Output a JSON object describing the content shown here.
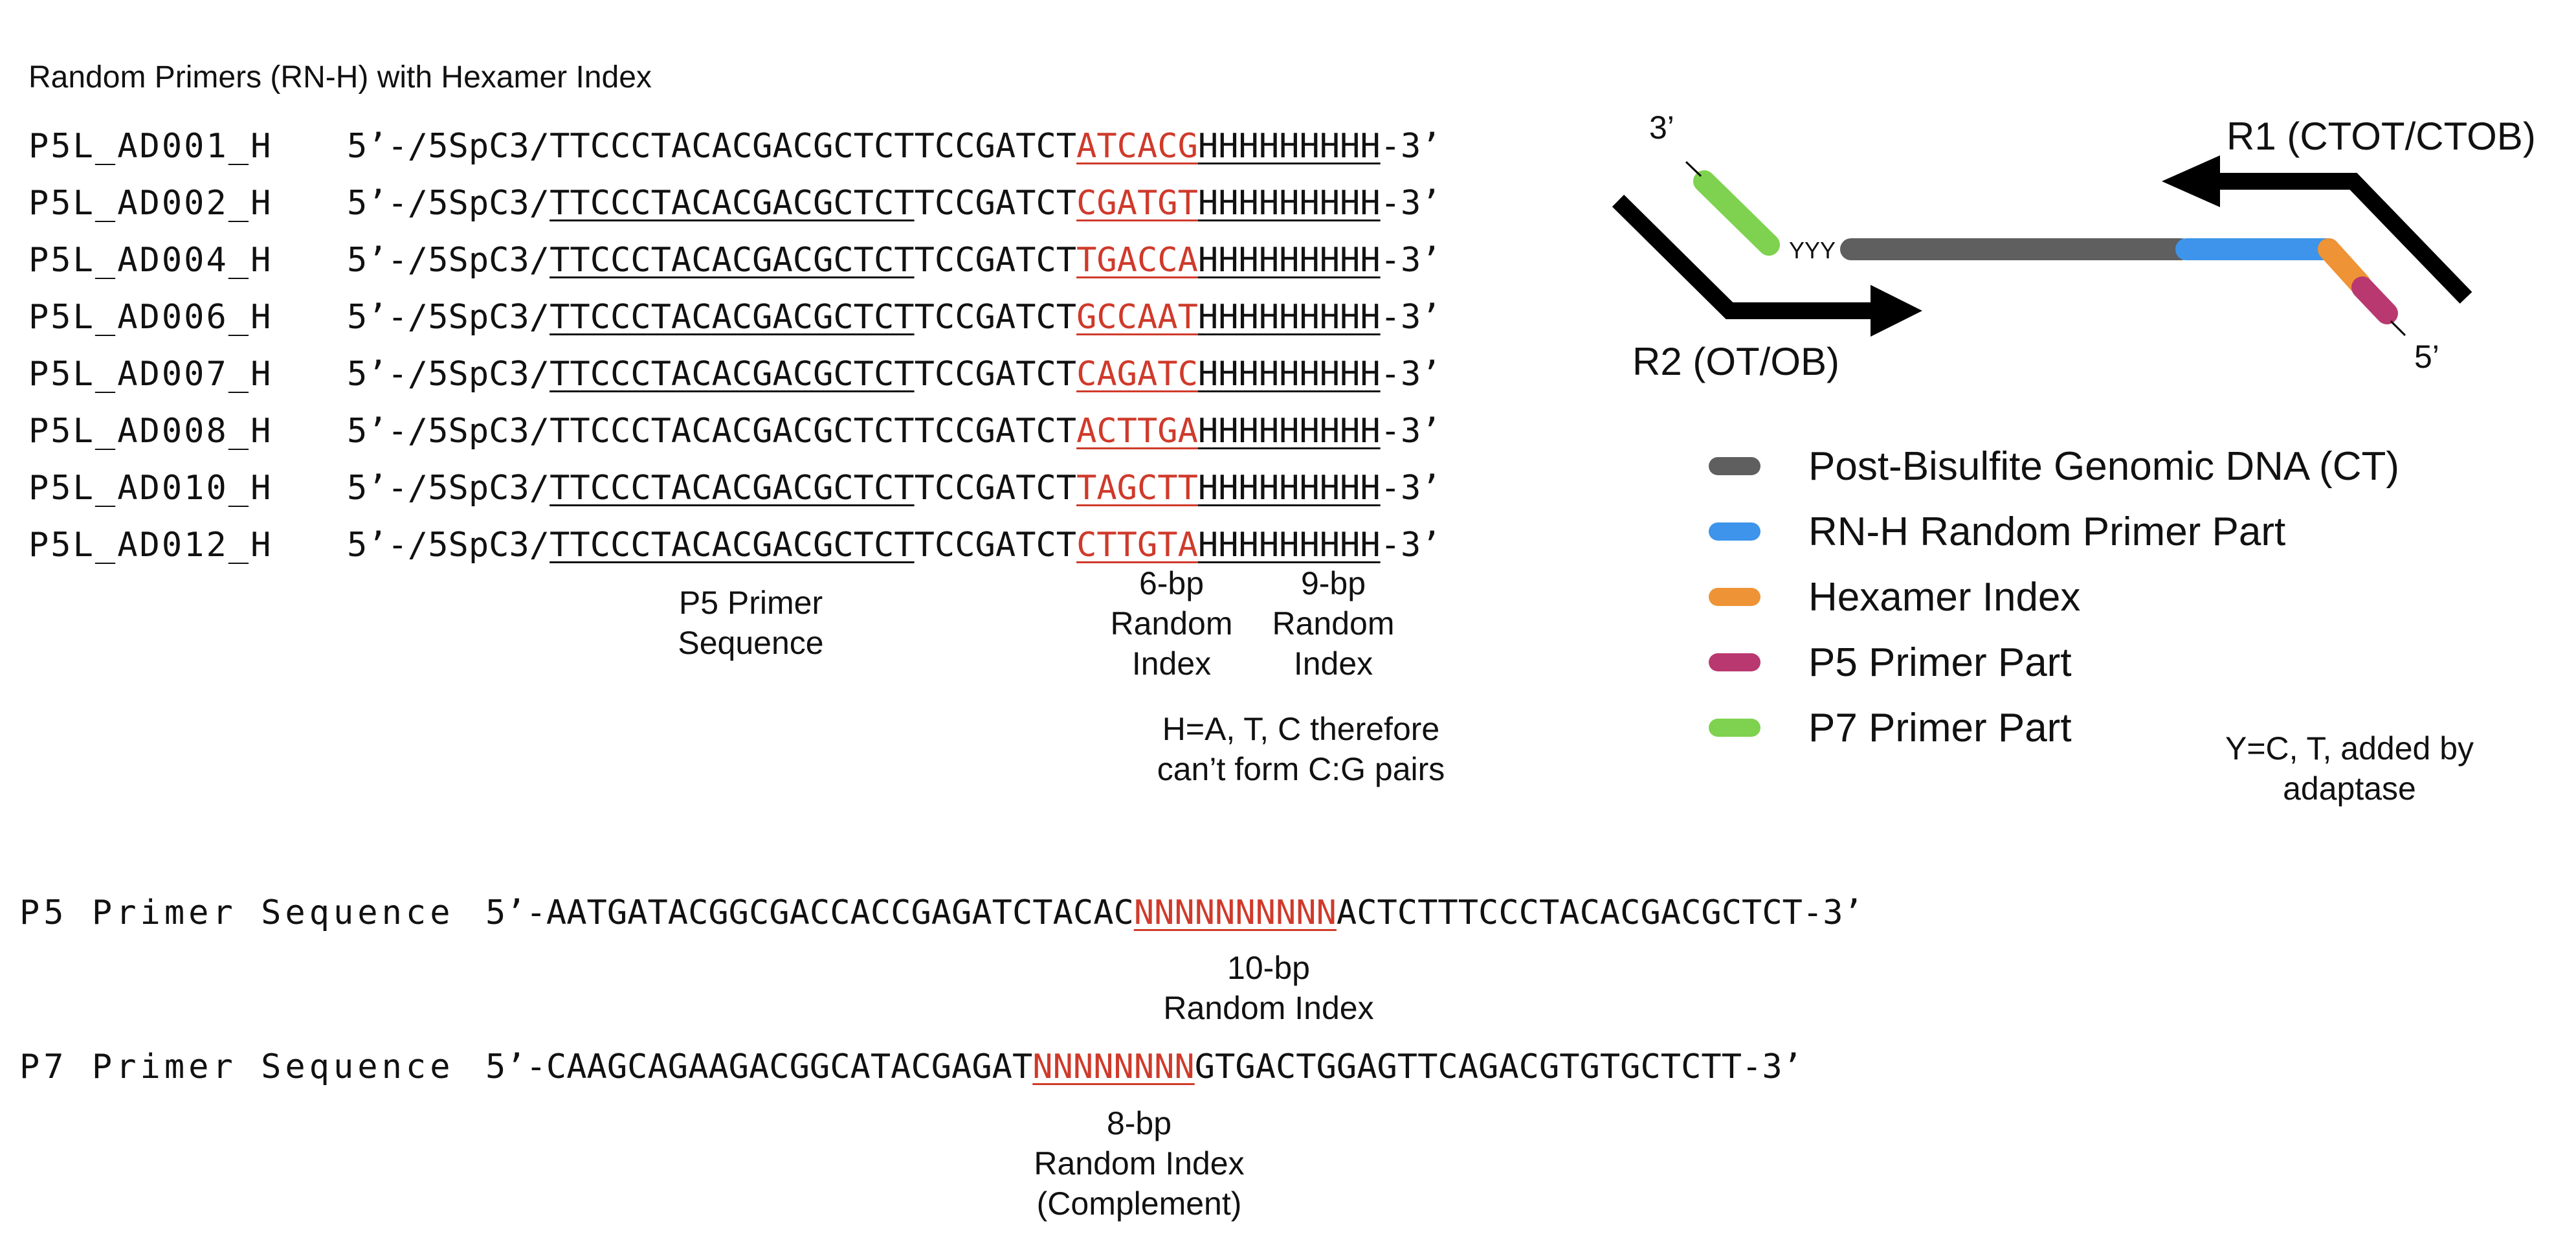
{
  "title": "Random Primers (RN-H) with Hexamer Index",
  "primer_rows": [
    {
      "name": "P5L_AD001_H",
      "prefix": "5’-/5SpC3/",
      "p5": "TTCCCTACACGACGCTCT",
      "mid": "TCCGATCT",
      "index": "ATCACG",
      "random": "HHHHHHHHH",
      "suffix": "-3’"
    },
    {
      "name": "P5L_AD002_H",
      "prefix": "5’-/5SpC3/",
      "p5": "TTCCCTACACGACGCTCT",
      "mid": "TCCGATCT",
      "index": "CGATGT",
      "random": "HHHHHHHHH",
      "suffix": "-3’"
    },
    {
      "name": "P5L_AD004_H",
      "prefix": "5’-/5SpC3/",
      "p5": "TTCCCTACACGACGCTCT",
      "mid": "TCCGATCT",
      "index": "TGACCA",
      "random": "HHHHHHHHH",
      "suffix": "-3’"
    },
    {
      "name": "P5L_AD006_H",
      "prefix": "5’-/5SpC3/",
      "p5": "TTCCCTACACGACGCTCT",
      "mid": "TCCGATCT",
      "index": "GCCAAT",
      "random": "HHHHHHHHH",
      "suffix": "-3’"
    },
    {
      "name": "P5L_AD007_H",
      "prefix": "5’-/5SpC3/",
      "p5": "TTCCCTACACGACGCTCT",
      "mid": "TCCGATCT",
      "index": "CAGATC",
      "random": "HHHHHHHHH",
      "suffix": "-3’"
    },
    {
      "name": "P5L_AD008_H",
      "prefix": "5’-/5SpC3/",
      "p5": "TTCCCTACACGACGCTCT",
      "mid": "TCCGATCT",
      "index": "ACTTGA",
      "random": "HHHHHHHHH",
      "suffix": "-3’"
    },
    {
      "name": "P5L_AD010_H",
      "prefix": "5’-/5SpC3/",
      "p5": "TTCCCTACACGACGCTCT",
      "mid": "TCCGATCT",
      "index": "TAGCTT",
      "random": "HHHHHHHHH",
      "suffix": "-3’"
    },
    {
      "name": "P5L_AD012_H",
      "prefix": "5’-/5SpC3/",
      "p5": "TTCCCTACACGACGCTCT",
      "mid": "TCCGATCT",
      "index": "CTTGTA",
      "random": "HHHHHHHHH",
      "suffix": "-3’"
    }
  ],
  "annotations": {
    "p5_primer": [
      "P5 Primer",
      "Sequence"
    ],
    "index6": [
      "6-bp",
      "Random",
      "Index"
    ],
    "random9": [
      "9-bp",
      "Random",
      "Index"
    ],
    "h_note": [
      "H=A, T, C therefore",
      "can’t form C:G pairs"
    ]
  },
  "diagram": {
    "r1_label": "R1 (CTOT/CTOB)",
    "r2_label": "R2 (OT/OB)",
    "end3": "3’",
    "end5": "5’",
    "yyy": "YYY",
    "y_note": [
      "Y=C, T, added by",
      "adaptase"
    ]
  },
  "legend": [
    {
      "label": "Post-Bisulfite Genomic DNA (CT)",
      "color": "#5f5f5f"
    },
    {
      "label": "RN-H Random Primer Part",
      "color": "#3d94ea"
    },
    {
      "label": "Hexamer Index",
      "color": "#ee9336"
    },
    {
      "label": "P5 Primer Part",
      "color": "#b9386f"
    },
    {
      "label": "P7 Primer Part",
      "color": "#7ed24f"
    }
  ],
  "p5_sequence": {
    "name": "P5 Primer Sequence",
    "before": "5’-AATGATACGGCGACCACCGAGATCTACAC",
    "index": "NNNNNNNNNN",
    "after": "ACTCTTTCCCTACACGACGCTCT-3’",
    "note": [
      "10-bp",
      "Random Index"
    ]
  },
  "p7_sequence": {
    "name": "P7 Primer Sequence",
    "before": "5’-CAAGCAGAAGACGGCATACGAGAT",
    "index": "NNNNNNNN",
    "after": "GTGACTGGAGTTCAGACGTGTGCTCTT-3’",
    "note": [
      "8-bp",
      "Random Index",
      "(Complement)"
    ]
  }
}
